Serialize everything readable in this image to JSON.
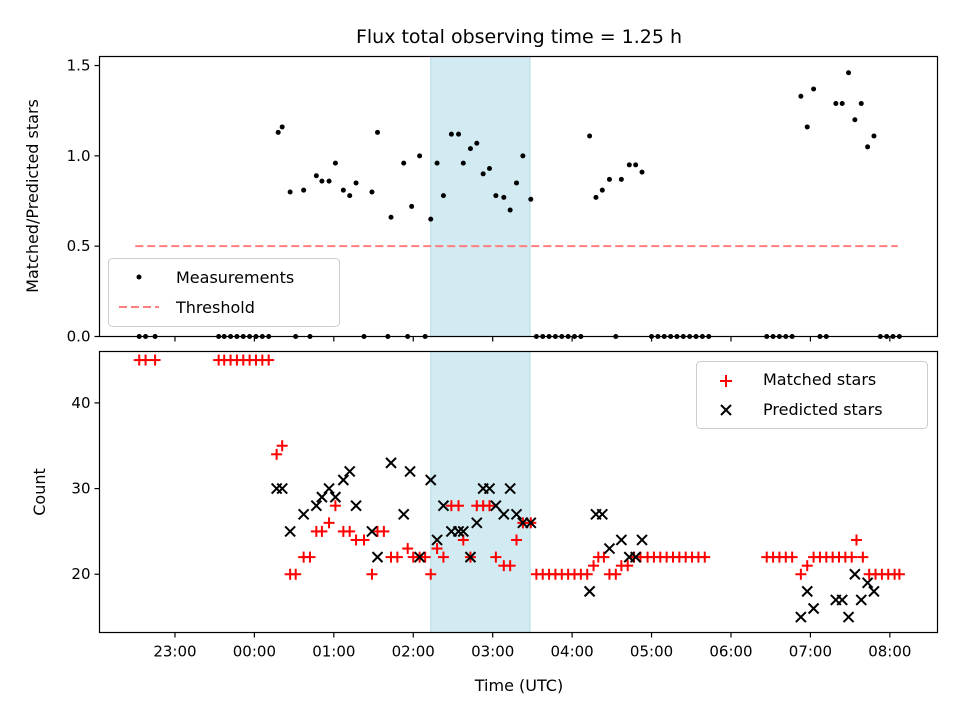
{
  "chart_data": {
    "title": "Flux total observing time = 1.25 h",
    "x_ticks": [
      "23:00",
      "00:00",
      "01:00",
      "02:00",
      "03:00",
      "04:00",
      "05:00",
      "06:00",
      "07:00",
      "08:00"
    ],
    "xlabel": "Time (UTC)",
    "xlim_hours": [
      -1.95,
      8.6
    ],
    "highlight_span_hours": [
      2.22,
      3.47
    ],
    "colors": {
      "measurements": "#000000",
      "threshold": "#ff7f7f",
      "matched": "#ff0000",
      "predicted": "#000000",
      "highlight": "#add8e6"
    },
    "panels": [
      {
        "type": "scatter",
        "ylabel": "Matched/Predicted stars",
        "ylim": [
          0,
          1.55
        ],
        "y_ticks": [
          "0.0",
          "0.5",
          "1.0",
          "1.5"
        ],
        "legend_position": "lower-left",
        "legend": [
          "Measurements",
          "Threshold"
        ],
        "threshold": {
          "value": 0.5,
          "x_range_hours": [
            -1.5,
            8.1
          ]
        },
        "measurements": [
          [
            -1.45,
            0
          ],
          [
            -1.37,
            0
          ],
          [
            -1.25,
            0
          ],
          [
            -0.45,
            0
          ],
          [
            -0.38,
            0
          ],
          [
            -0.3,
            0
          ],
          [
            -0.22,
            0
          ],
          [
            -0.14,
            0
          ],
          [
            -0.06,
            0
          ],
          [
            0.02,
            0
          ],
          [
            0.1,
            0
          ],
          [
            0.18,
            0
          ],
          [
            0.3,
            1.13
          ],
          [
            0.35,
            1.16
          ],
          [
            0.45,
            0.8
          ],
          [
            0.52,
            0
          ],
          [
            0.62,
            0.81
          ],
          [
            0.7,
            0
          ],
          [
            0.78,
            0.89
          ],
          [
            0.85,
            0.86
          ],
          [
            0.94,
            0.86
          ],
          [
            1.02,
            0.96
          ],
          [
            1.12,
            0.81
          ],
          [
            1.2,
            0.78
          ],
          [
            1.28,
            0.85
          ],
          [
            1.38,
            0
          ],
          [
            1.48,
            0.8
          ],
          [
            1.55,
            1.13
          ],
          [
            1.68,
            0
          ],
          [
            1.72,
            0.66
          ],
          [
            1.88,
            0.96
          ],
          [
            1.93,
            0
          ],
          [
            1.98,
            0.72
          ],
          [
            2.08,
            1.0
          ],
          [
            2.15,
            0
          ],
          [
            2.22,
            0.65
          ],
          [
            2.3,
            0.96
          ],
          [
            2.38,
            0.78
          ],
          [
            2.48,
            1.12
          ],
          [
            2.57,
            1.12
          ],
          [
            2.63,
            0.96
          ],
          [
            2.72,
            1.04
          ],
          [
            2.8,
            1.07
          ],
          [
            2.88,
            0.9
          ],
          [
            2.96,
            0.93
          ],
          [
            3.04,
            0.78
          ],
          [
            3.14,
            0.77
          ],
          [
            3.22,
            0.7
          ],
          [
            3.3,
            0.85
          ],
          [
            3.38,
            1.0
          ],
          [
            3.48,
            0.76
          ],
          [
            3.55,
            0
          ],
          [
            3.63,
            0
          ],
          [
            3.71,
            0
          ],
          [
            3.79,
            0
          ],
          [
            3.87,
            0
          ],
          [
            3.95,
            0
          ],
          [
            4.03,
            0
          ],
          [
            4.11,
            0
          ],
          [
            4.22,
            1.11
          ],
          [
            4.3,
            0.77
          ],
          [
            4.38,
            0.81
          ],
          [
            4.47,
            0.87
          ],
          [
            4.55,
            0
          ],
          [
            4.62,
            0.87
          ],
          [
            4.72,
            0.95
          ],
          [
            4.8,
            0.95
          ],
          [
            4.88,
            0.91
          ],
          [
            5.0,
            0
          ],
          [
            5.08,
            0
          ],
          [
            5.16,
            0
          ],
          [
            5.24,
            0
          ],
          [
            5.32,
            0
          ],
          [
            5.4,
            0
          ],
          [
            5.48,
            0
          ],
          [
            5.56,
            0
          ],
          [
            5.64,
            0
          ],
          [
            5.72,
            0
          ],
          [
            6.45,
            0
          ],
          [
            6.53,
            0
          ],
          [
            6.61,
            0
          ],
          [
            6.69,
            0
          ],
          [
            6.77,
            0
          ],
          [
            6.88,
            1.33
          ],
          [
            6.96,
            1.16
          ],
          [
            7.04,
            1.37
          ],
          [
            7.12,
            0
          ],
          [
            7.2,
            0
          ],
          [
            7.32,
            1.29
          ],
          [
            7.4,
            1.29
          ],
          [
            7.48,
            1.46
          ],
          [
            7.56,
            1.2
          ],
          [
            7.64,
            1.29
          ],
          [
            7.72,
            1.05
          ],
          [
            7.8,
            1.11
          ],
          [
            7.88,
            0
          ],
          [
            7.96,
            0
          ],
          [
            8.04,
            0
          ],
          [
            8.12,
            0
          ]
        ]
      },
      {
        "type": "scatter",
        "ylabel": "Count",
        "ylim": [
          13.2,
          46
        ],
        "y_ticks": [
          "20",
          "30",
          "40"
        ],
        "legend_position": "upper-right",
        "legend": [
          "Matched stars",
          "Predicted stars"
        ],
        "matched": [
          [
            -1.45,
            45
          ],
          [
            -1.37,
            45
          ],
          [
            -1.25,
            45
          ],
          [
            -0.45,
            45
          ],
          [
            -0.38,
            45
          ],
          [
            -0.3,
            45
          ],
          [
            -0.22,
            45
          ],
          [
            -0.14,
            45
          ],
          [
            -0.06,
            45
          ],
          [
            0.02,
            45
          ],
          [
            0.1,
            45
          ],
          [
            0.18,
            45
          ],
          [
            0.28,
            34
          ],
          [
            0.35,
            35
          ],
          [
            0.45,
            20
          ],
          [
            0.52,
            20
          ],
          [
            0.62,
            22
          ],
          [
            0.7,
            22
          ],
          [
            0.78,
            25
          ],
          [
            0.85,
            25
          ],
          [
            0.94,
            26
          ],
          [
            1.02,
            28
          ],
          [
            1.12,
            25
          ],
          [
            1.2,
            25
          ],
          [
            1.28,
            24
          ],
          [
            1.38,
            24
          ],
          [
            1.48,
            20
          ],
          [
            1.55,
            25
          ],
          [
            1.63,
            25
          ],
          [
            1.72,
            22
          ],
          [
            1.8,
            22
          ],
          [
            1.93,
            23
          ],
          [
            2.0,
            22
          ],
          [
            2.08,
            22
          ],
          [
            2.15,
            22
          ],
          [
            2.22,
            20
          ],
          [
            2.3,
            23
          ],
          [
            2.38,
            22
          ],
          [
            2.48,
            28
          ],
          [
            2.57,
            28
          ],
          [
            2.63,
            24
          ],
          [
            2.72,
            22
          ],
          [
            2.8,
            28
          ],
          [
            2.88,
            28
          ],
          [
            2.96,
            28
          ],
          [
            3.04,
            22
          ],
          [
            3.14,
            21
          ],
          [
            3.22,
            21
          ],
          [
            3.3,
            24
          ],
          [
            3.38,
            26
          ],
          [
            3.48,
            26
          ],
          [
            3.55,
            20
          ],
          [
            3.63,
            20
          ],
          [
            3.71,
            20
          ],
          [
            3.79,
            20
          ],
          [
            3.87,
            20
          ],
          [
            3.95,
            20
          ],
          [
            4.03,
            20
          ],
          [
            4.11,
            20
          ],
          [
            4.19,
            20
          ],
          [
            4.27,
            21
          ],
          [
            4.33,
            22
          ],
          [
            4.4,
            22
          ],
          [
            4.47,
            20
          ],
          [
            4.55,
            20
          ],
          [
            4.62,
            21
          ],
          [
            4.7,
            21
          ],
          [
            4.78,
            22
          ],
          [
            4.86,
            22
          ],
          [
            4.95,
            22
          ],
          [
            5.03,
            22
          ],
          [
            5.11,
            22
          ],
          [
            5.19,
            22
          ],
          [
            5.27,
            22
          ],
          [
            5.35,
            22
          ],
          [
            5.43,
            22
          ],
          [
            5.51,
            22
          ],
          [
            5.59,
            22
          ],
          [
            5.67,
            22
          ],
          [
            6.45,
            22
          ],
          [
            6.53,
            22
          ],
          [
            6.61,
            22
          ],
          [
            6.69,
            22
          ],
          [
            6.77,
            22
          ],
          [
            6.88,
            20
          ],
          [
            6.96,
            21
          ],
          [
            7.04,
            22
          ],
          [
            7.12,
            22
          ],
          [
            7.2,
            22
          ],
          [
            7.28,
            22
          ],
          [
            7.36,
            22
          ],
          [
            7.44,
            22
          ],
          [
            7.52,
            22
          ],
          [
            7.58,
            24
          ],
          [
            7.66,
            22
          ],
          [
            7.74,
            20
          ],
          [
            7.82,
            20
          ],
          [
            7.9,
            20
          ],
          [
            7.98,
            20
          ],
          [
            8.06,
            20
          ],
          [
            8.12,
            20
          ]
        ],
        "predicted": [
          [
            0.28,
            30
          ],
          [
            0.35,
            30
          ],
          [
            0.45,
            25
          ],
          [
            0.62,
            27
          ],
          [
            0.78,
            28
          ],
          [
            0.85,
            29
          ],
          [
            0.94,
            30
          ],
          [
            1.02,
            29
          ],
          [
            1.12,
            31
          ],
          [
            1.2,
            32
          ],
          [
            1.28,
            28
          ],
          [
            1.48,
            25
          ],
          [
            1.55,
            22
          ],
          [
            1.72,
            33
          ],
          [
            1.88,
            27
          ],
          [
            1.96,
            32
          ],
          [
            2.08,
            22
          ],
          [
            2.22,
            31
          ],
          [
            2.3,
            24
          ],
          [
            2.38,
            28
          ],
          [
            2.48,
            25
          ],
          [
            2.57,
            25
          ],
          [
            2.63,
            25
          ],
          [
            2.72,
            22
          ],
          [
            2.8,
            26
          ],
          [
            2.88,
            30
          ],
          [
            2.96,
            30
          ],
          [
            3.04,
            28
          ],
          [
            3.14,
            27
          ],
          [
            3.22,
            30
          ],
          [
            3.3,
            27
          ],
          [
            3.38,
            26
          ],
          [
            3.48,
            26
          ],
          [
            4.22,
            18
          ],
          [
            4.3,
            27
          ],
          [
            4.38,
            27
          ],
          [
            4.47,
            23
          ],
          [
            4.62,
            24
          ],
          [
            4.72,
            22
          ],
          [
            4.8,
            22
          ],
          [
            4.88,
            24
          ],
          [
            6.88,
            15
          ],
          [
            6.96,
            18
          ],
          [
            7.04,
            16
          ],
          [
            7.32,
            17
          ],
          [
            7.4,
            17
          ],
          [
            7.48,
            15
          ],
          [
            7.56,
            20
          ],
          [
            7.64,
            17
          ],
          [
            7.72,
            19
          ],
          [
            7.8,
            18
          ]
        ]
      }
    ]
  }
}
